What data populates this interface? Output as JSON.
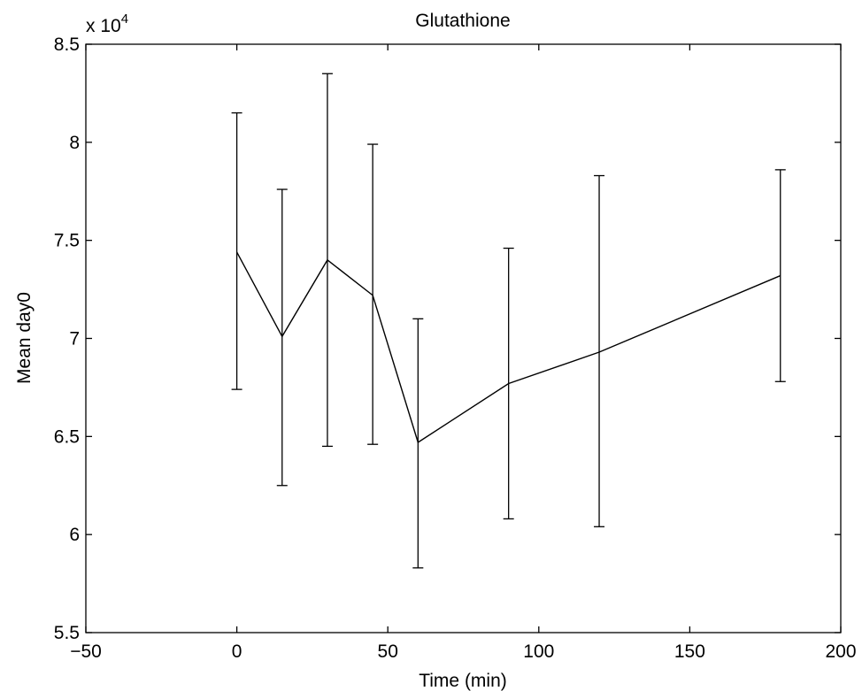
{
  "chart_data": {
    "type": "line",
    "title": "Glutathione",
    "xlabel": "Time (min)",
    "ylabel": "Mean day0",
    "y_multiplier_label": "x 10",
    "y_multiplier_exponent": "4",
    "xlim": [
      -50,
      200
    ],
    "ylim": [
      5.5,
      8.5
    ],
    "xticks": [
      -50,
      0,
      50,
      100,
      150,
      200
    ],
    "yticks": [
      5.5,
      6,
      6.5,
      7,
      7.5,
      8,
      8.5
    ],
    "xtick_labels": [
      "−50",
      "0",
      "50",
      "100",
      "150",
      "200"
    ],
    "ytick_labels": [
      "5.5",
      "6",
      "6.5",
      "7",
      "7.5",
      "8",
      "8.5"
    ],
    "grid": false,
    "series": [
      {
        "x": [
          0,
          15,
          30,
          45,
          60,
          90,
          120,
          180
        ],
        "y": [
          7.44,
          7.01,
          7.4,
          7.22,
          6.47,
          6.77,
          6.93,
          7.32
        ],
        "err_low": [
          6.74,
          6.25,
          6.45,
          6.46,
          5.83,
          6.08,
          6.04,
          6.78
        ],
        "err_high": [
          8.15,
          7.76,
          8.35,
          7.99,
          7.1,
          7.46,
          7.83,
          7.86
        ]
      }
    ],
    "colors": {
      "line": "#000000",
      "axes": "#000000",
      "background": "#ffffff"
    }
  }
}
